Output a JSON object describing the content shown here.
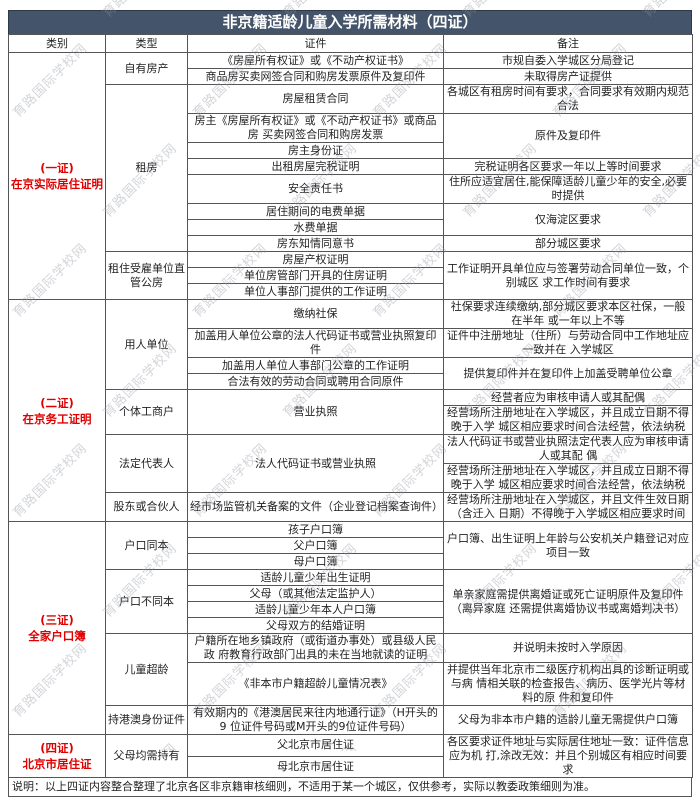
{
  "title": "非京籍适龄儿童入学所需材料（四证）",
  "watermark_text": "育路国际学校网",
  "columns": [
    "类别",
    "类型",
    "证件",
    "备注"
  ],
  "footer_note": "说明：以上四证内容整合整理了北京各区非京籍审核细则，不适用于某一个城区，仅供参考，实际以教委政策细则为准。",
  "colors": {
    "title_bg": "#44546a",
    "title_text": "#ffffff",
    "category_text": "#e00000",
    "border": "#555555",
    "watermark": "rgba(145,150,160,0.40)"
  },
  "sections": [
    {
      "category": "(一证)\n在京实际居住证明",
      "types": [
        {
          "type": "自有房产",
          "certs": [
            {
              "t": "《房屋所有权证》或《不动产权证书》",
              "s": 1
            },
            {
              "t": "商品房买卖网签合同和购房发票原件及复印件",
              "s": 1
            }
          ],
          "notes": [
            {
              "t": "市规自委入学城区分局登记",
              "s": 1
            },
            {
              "t": "未取得房产证提供",
              "s": 1
            }
          ]
        },
        {
          "type": "租房",
          "certs": [
            {
              "t": "房屋租赁合同",
              "s": 1
            },
            {
              "t": "房主《房屋所有权证》或《不动产权证书》或商品房 买卖网签合同和购房发票",
              "s": 1
            },
            {
              "t": "房主身份证",
              "s": 1
            },
            {
              "t": "出租房屋完税证明",
              "s": 1
            },
            {
              "t": "安全责任书",
              "s": 1
            },
            {
              "t": "居住期间的电费单据",
              "s": 1
            },
            {
              "t": "水费单据",
              "s": 1
            },
            {
              "t": "房东知情同意书",
              "s": 1
            }
          ],
          "notes": [
            {
              "t": "各城区有租房时间有要求，合同要求有效期内规范合法",
              "s": 1
            },
            {
              "t": "原件及复印件",
              "s": 2
            },
            {
              "t": "完税证明各区要求一年以上等时间要求",
              "s": 1
            },
            {
              "t": "住所应适宜居住,能保障适龄儿童少年的安全,必要时提供",
              "s": 1
            },
            {
              "t": "仅海淀区要求",
              "s": 2
            },
            {
              "t": "部分城区要求",
              "s": 1
            }
          ]
        },
        {
          "type": "租住受雇单位直管公房",
          "certs": [
            {
              "t": "房屋产权证明",
              "s": 1
            },
            {
              "t": "单位房管部门开具的住房证明",
              "s": 1
            },
            {
              "t": "单位人事部门提供的工作证明",
              "s": 1
            }
          ],
          "notes": [
            {
              "t": "工作证明开具单位应与签署劳动合同单位一致，个别城区 求工作时间有要求",
              "s": 3
            }
          ]
        }
      ]
    },
    {
      "category": "(二证)\n在京务工证明",
      "types": [
        {
          "type": "用人单位",
          "certs": [
            {
              "t": "缴纳社保",
              "s": 1
            },
            {
              "t": "加盖用人单位公章的法人代码证书或营业执照复印件",
              "s": 1
            },
            {
              "t": "加盖用人单位人事部门公章的工作证明",
              "s": 1
            },
            {
              "t": "合法有效的劳动合同或聘用合同原件",
              "s": 1
            }
          ],
          "notes": [
            {
              "t": "社保要求连续缴纳,部分城区要求本区社保，一般在半年 或一年以上不等",
              "s": 1
            },
            {
              "t": "证件中注册地址（住所）与劳动合同中工作地址应一致并在 入学城区",
              "s": 1
            },
            {
              "t": "提供复印件并在复印件上加盖受聘单位公章",
              "s": 2
            }
          ]
        },
        {
          "type": "个体工商户",
          "certs": [
            {
              "t": "营业执照",
              "s": 2
            }
          ],
          "notes": [
            {
              "t": "经营者应为审核申请人或其配偶",
              "s": 1
            },
            {
              "t": "经营场所注册地址在入学城区，并且成立日期不得晚于入学 城区相应要求时间合法经营，依法纳税",
              "s": 1
            }
          ]
        },
        {
          "type": "法定代表人",
          "certs": [
            {
              "t": "法人代码证书或营业执照",
              "s": 2
            }
          ],
          "notes": [
            {
              "t": "法人代码证书或营业执照法定代表人应为审核申请人或其配 偶",
              "s": 1
            },
            {
              "t": "经营场所注册地址在入学城区，并且成立日期不得晚于入学 城区相应要求时间合法经营，依法纳税",
              "s": 1
            }
          ]
        },
        {
          "type": "股东或合伙人",
          "certs": [
            {
              "t": "经市场监管机关备案的文件（企业登记档案查询件）",
              "s": 1
            }
          ],
          "notes": [
            {
              "t": "经营场所注册地址在入学城区，并且文件生效日期（含迁入 日期）不得晚于入学城区相应要求时间",
              "s": 1
            }
          ]
        }
      ]
    },
    {
      "category": "(三证)\n全家户口簿",
      "types": [
        {
          "type": "户口同本",
          "certs": [
            {
              "t": "孩子户口簿",
              "s": 1
            },
            {
              "t": "父户口簿",
              "s": 1
            },
            {
              "t": "母户口簿",
              "s": 1
            }
          ],
          "notes": [
            {
              "t": "户口簿、出生证明上年龄与公安机关户籍登记对应项目一致",
              "s": 3
            }
          ]
        },
        {
          "type": "户口不同本",
          "certs": [
            {
              "t": "适龄儿童少年出生证明",
              "s": 1
            },
            {
              "t": "父母（或其他法定监护人）",
              "s": 1
            },
            {
              "t": "适龄儿童少年本人户口簿",
              "s": 1
            },
            {
              "t": "父母双方的结婚证明",
              "s": 1
            }
          ],
          "notes": [
            {
              "t": "单亲家庭需提供离婚证或死亡证明原件及复印件（离异家庭 还需提供离婚协议书或离婚判决书）",
              "s": 4
            }
          ]
        },
        {
          "type": "儿童超龄",
          "certs": [
            {
              "t": "户籍所在地乡镇政府（或街道办事处）或县级人民政 府教育行政部门出具的未在当地就读的证明",
              "s": 1
            },
            {
              "t": "《非本市户籍超龄儿童情况表》",
              "s": 1
            }
          ],
          "notes": [
            {
              "t": "并说明未按时入学原因",
              "s": 1
            },
            {
              "t": "并提供当年北京市二级医疗机构出具的诊断证明或与病 情相关联的检查报告、病历、医学光片等材料的原 件和复印件",
              "s": 1
            }
          ]
        },
        {
          "type": "持港澳身份证件",
          "certs": [
            {
              "t": "有效期内的《港澳居民来往内地通行证》（H开头的9 位证件号码或M开头的9位证件号码）",
              "s": 1
            }
          ],
          "notes": [
            {
              "t": "父母为非本市户籍的适龄儿童无需提供户口簿",
              "s": 1
            }
          ]
        }
      ]
    },
    {
      "category": "(四证)\n北京市居住证",
      "types": [
        {
          "type": "父母均需持有",
          "certs": [
            {
              "t": "父北京市居住证",
              "s": 1
            },
            {
              "t": "母北京市居住证",
              "s": 1
            }
          ],
          "notes": [
            {
              "t": "各区要求证件地址与实际居住地址一致：证件信息应为机 打,涂改无效：并且个别城区有相应时间要求",
              "s": 2
            }
          ]
        }
      ]
    }
  ]
}
